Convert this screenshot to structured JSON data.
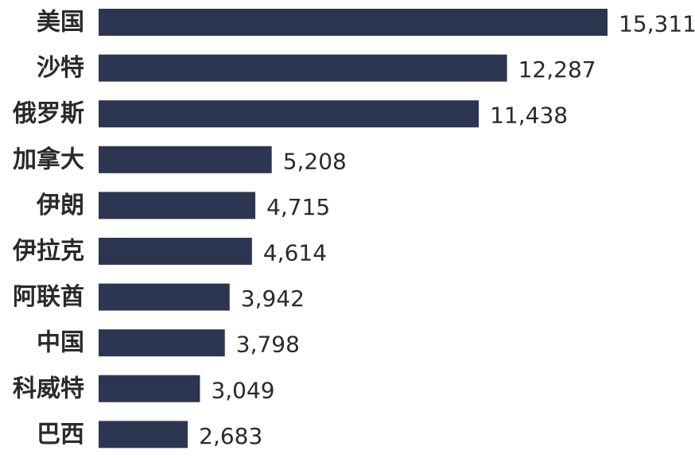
{
  "chart_data": {
    "type": "bar",
    "orientation": "horizontal",
    "title": "",
    "xlabel": "",
    "ylabel": "",
    "grid": false,
    "legend": "none",
    "bar_color": "#2d3650",
    "text_color": "#2a2a2a",
    "xlim": [
      0,
      15311
    ],
    "categories": [
      "美国",
      "沙特",
      "俄罗斯",
      "加拿大",
      "伊朗",
      "伊拉克",
      "阿联酋",
      "中国",
      "科威特",
      "巴西"
    ],
    "values": [
      15311,
      12287,
      11438,
      5208,
      4715,
      4614,
      3942,
      3798,
      3049,
      2683
    ],
    "value_labels": [
      "15,311",
      "12,287",
      "11,438",
      "5,208",
      "4,715",
      "4,614",
      "3,942",
      "3,798",
      "3,049",
      "2,683"
    ]
  }
}
